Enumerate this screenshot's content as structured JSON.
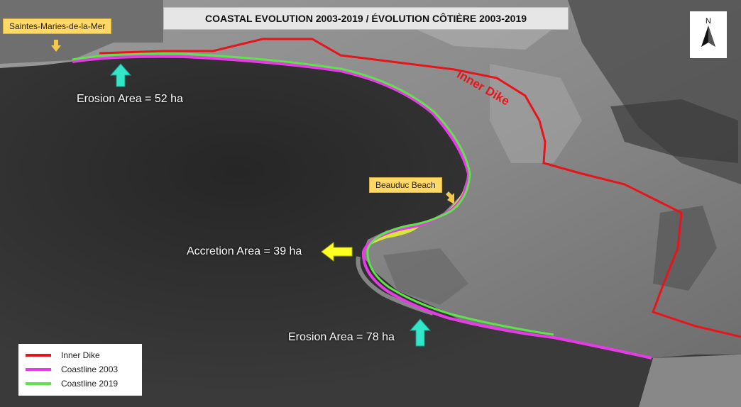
{
  "title": "COASTAL EVOLUTION 2003-2019 / ÉVOLUTION CÔTIÈRE 2003-2019",
  "places": {
    "town": "Saintes-Maries-de-la-Mer",
    "beach": "Beauduc Beach"
  },
  "dike_label": "Inner Dike",
  "areas": {
    "erosion_west": "Erosion Area = 52 ha",
    "accretion": "Accretion Area = 39 ha",
    "erosion_south": "Erosion Area = 78 ha"
  },
  "north_label": "N",
  "legend": [
    {
      "label": "Inner Dike",
      "color": "#e8141b"
    },
    {
      "label": "Coastline 2003",
      "color": "#e83be8"
    },
    {
      "label": "Coastline 2019",
      "color": "#5fe34a"
    }
  ],
  "colors": {
    "sea": "#2a2a2a",
    "land": "#8c8c8c",
    "dike": "#e8141b",
    "coast2003": "#e83be8",
    "coast2019": "#5fe34a",
    "erosion_arrow": "#33e6c8",
    "accretion_arrow": "#ffff22",
    "label_fill": "#ffd866",
    "pointer_arrow": "#f2c94c"
  }
}
